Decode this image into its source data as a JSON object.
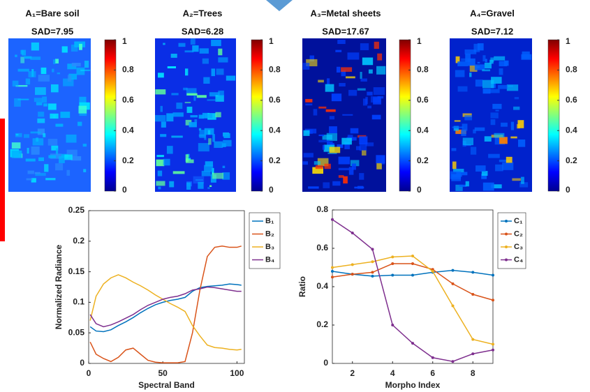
{
  "chart_data": [
    {
      "type": "heatmap",
      "title": "A₁=Bare soil",
      "subtitle": "SAD=7.95",
      "clim": [
        0,
        1
      ],
      "cticks": [
        0,
        0.2,
        0.4,
        0.6,
        0.8,
        1
      ]
    },
    {
      "type": "heatmap",
      "title": "A₂=Trees",
      "subtitle": "SAD=6.28",
      "clim": [
        0,
        1
      ],
      "cticks": [
        0,
        0.2,
        0.4,
        0.6,
        0.8,
        1
      ]
    },
    {
      "type": "heatmap",
      "title": "A₃=Metal sheets",
      "subtitle": "SAD=17.67",
      "clim": [
        0,
        1
      ],
      "cticks": [
        0,
        0.2,
        0.4,
        0.6,
        0.8,
        1
      ]
    },
    {
      "type": "heatmap",
      "title": "A₄=Gravel",
      "subtitle": "SAD=7.12",
      "clim": [
        0,
        1
      ],
      "cticks": [
        0,
        0.2,
        0.4,
        0.6,
        0.8,
        1
      ]
    },
    {
      "type": "line",
      "xlabel": "Spectral Band",
      "ylabel": "Normalized Radiance",
      "x": [
        1,
        5,
        10,
        15,
        20,
        25,
        30,
        35,
        40,
        45,
        50,
        55,
        60,
        65,
        70,
        75,
        80,
        85,
        90,
        95,
        100,
        103
      ],
      "series": [
        {
          "name": "B₁",
          "color": "#0072bd",
          "values": [
            0.06,
            0.053,
            0.052,
            0.055,
            0.062,
            0.068,
            0.075,
            0.083,
            0.09,
            0.096,
            0.1,
            0.103,
            0.105,
            0.108,
            0.118,
            0.124,
            0.126,
            0.127,
            0.128,
            0.13,
            0.129,
            0.128
          ]
        },
        {
          "name": "B₂",
          "color": "#d95319",
          "values": [
            0.035,
            0.015,
            0.008,
            0.003,
            0.01,
            0.022,
            0.025,
            0.015,
            0.005,
            0.002,
            0.001,
            0.001,
            0.001,
            0.003,
            0.05,
            0.12,
            0.175,
            0.19,
            0.192,
            0.19,
            0.19,
            0.192
          ]
        },
        {
          "name": "B₃",
          "color": "#edb120",
          "values": [
            0.07,
            0.11,
            0.13,
            0.14,
            0.145,
            0.14,
            0.133,
            0.127,
            0.12,
            0.112,
            0.105,
            0.098,
            0.092,
            0.085,
            0.062,
            0.045,
            0.03,
            0.026,
            0.025,
            0.023,
            0.022,
            0.023
          ]
        },
        {
          "name": "B₄",
          "color": "#7e2f8e",
          "values": [
            0.08,
            0.065,
            0.06,
            0.063,
            0.068,
            0.074,
            0.08,
            0.088,
            0.095,
            0.1,
            0.105,
            0.108,
            0.11,
            0.114,
            0.12,
            0.122,
            0.125,
            0.124,
            0.122,
            0.12,
            0.118,
            0.118
          ]
        }
      ],
      "xlim": [
        0,
        105
      ],
      "ylim": [
        0,
        0.25
      ],
      "xticks": [
        0,
        50,
        100
      ],
      "yticks": [
        0,
        0.05,
        0.1,
        0.15,
        0.2,
        0.25
      ],
      "legend": "outside right"
    },
    {
      "type": "line",
      "marker": "dot",
      "xlabel": "Morpho Index",
      "ylabel": "Ratio",
      "x": [
        1,
        2,
        3,
        4,
        5,
        6,
        7,
        8,
        9
      ],
      "series": [
        {
          "name": "C₁",
          "color": "#0072bd",
          "values": [
            0.48,
            0.465,
            0.455,
            0.46,
            0.46,
            0.475,
            0.485,
            0.475,
            0.46
          ]
        },
        {
          "name": "C₂",
          "color": "#d95319",
          "values": [
            0.45,
            0.465,
            0.475,
            0.52,
            0.52,
            0.49,
            0.415,
            0.36,
            0.33
          ]
        },
        {
          "name": "C₃",
          "color": "#edb120",
          "values": [
            0.5,
            0.515,
            0.53,
            0.555,
            0.56,
            0.48,
            0.3,
            0.125,
            0.1
          ]
        },
        {
          "name": "C₄",
          "color": "#7e2f8e",
          "values": [
            0.75,
            0.68,
            0.595,
            0.2,
            0.105,
            0.03,
            0.01,
            0.05,
            0.07
          ]
        }
      ],
      "xlim": [
        1,
        9
      ],
      "ylim": [
        0,
        0.8
      ],
      "xticks": [
        2,
        4,
        6,
        8
      ],
      "yticks": [
        0,
        0.2,
        0.4,
        0.6,
        0.8
      ],
      "legend": "outside right"
    }
  ]
}
